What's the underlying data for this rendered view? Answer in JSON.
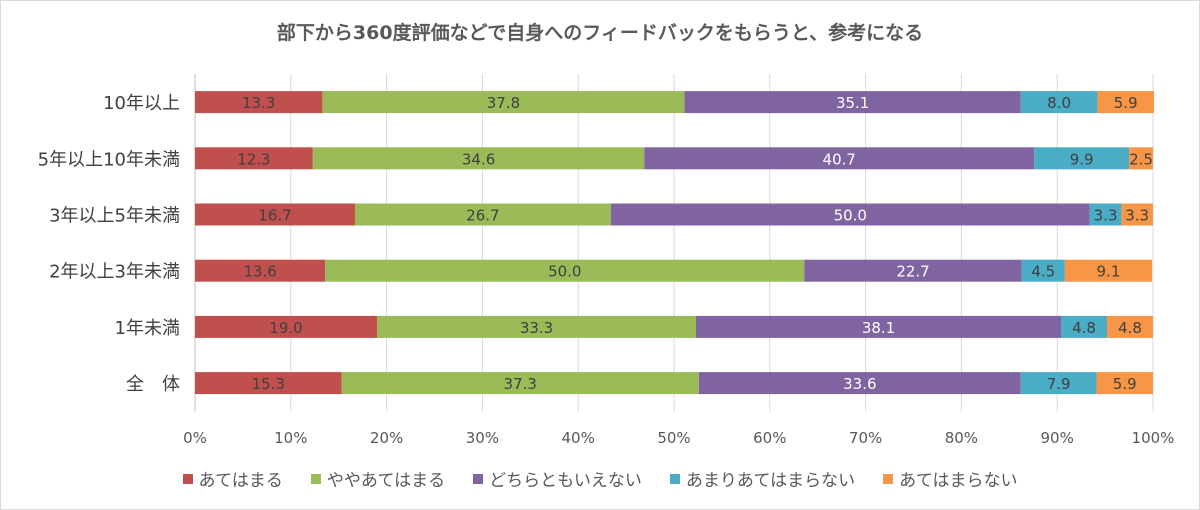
{
  "chart_data": {
    "type": "bar",
    "orientation": "horizontal",
    "stacked": "percent",
    "title": "部下から360度評価などで自身へのフィードバックをもらうと、参考になる",
    "categories": [
      "10年以上",
      "5年以上10年未満",
      "3年以上5年未満",
      "2年以上3年未満",
      "1年未満",
      "全　体"
    ],
    "series": [
      {
        "name": "あてはまる",
        "color": "#C0504D",
        "label_color": "#404040",
        "values": [
          13.3,
          12.3,
          16.7,
          13.6,
          19.0,
          15.3
        ]
      },
      {
        "name": "ややあてはまる",
        "color": "#9BBB59",
        "label_color": "#404040",
        "values": [
          37.8,
          34.6,
          26.7,
          50.0,
          33.3,
          37.3
        ]
      },
      {
        "name": "どちらともいえない",
        "color": "#8064A2",
        "label_color": "#FFFFFF",
        "values": [
          35.1,
          40.7,
          50.0,
          22.7,
          38.1,
          33.6
        ]
      },
      {
        "name": "あまりあてはまらない",
        "color": "#4BACC6",
        "label_color": "#404040",
        "values": [
          8.0,
          9.9,
          3.3,
          4.5,
          4.8,
          7.9
        ]
      },
      {
        "name": "あてはまらない",
        "color": "#F79646",
        "label_color": "#404040",
        "values": [
          5.9,
          2.5,
          3.3,
          9.1,
          4.8,
          5.9
        ]
      }
    ],
    "xlim": [
      0,
      100
    ],
    "x_ticks": [
      "0%",
      "10%",
      "20%",
      "30%",
      "40%",
      "50%",
      "60%",
      "70%",
      "80%",
      "90%",
      "100%"
    ],
    "grid": true,
    "legend": "bottom"
  }
}
